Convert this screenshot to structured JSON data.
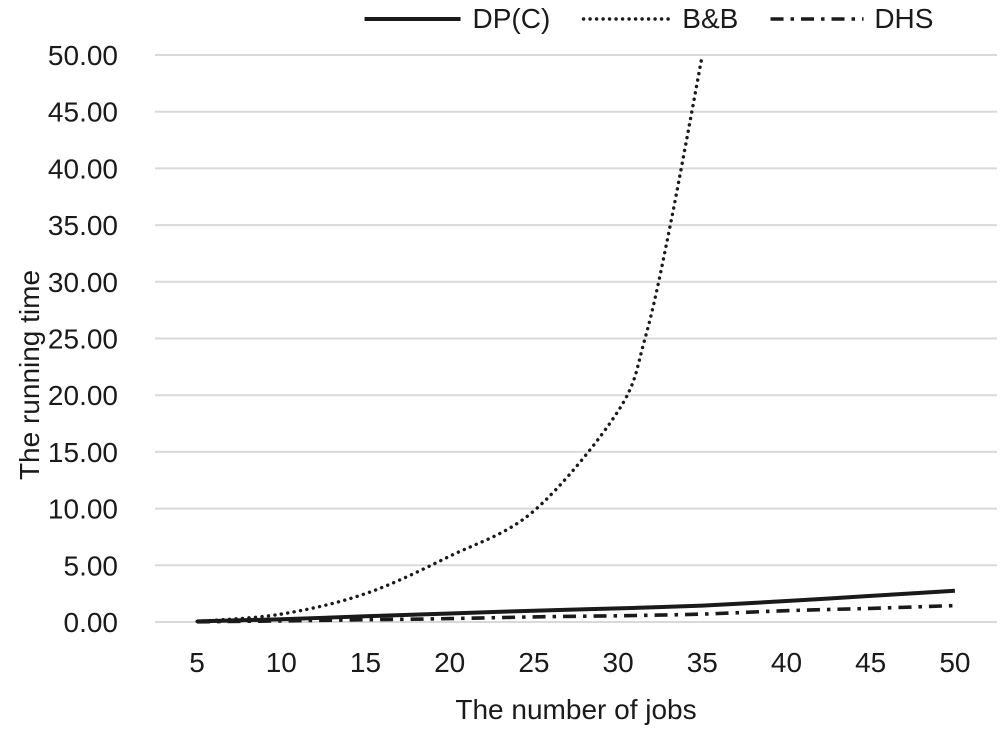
{
  "chart_data": {
    "type": "line",
    "title": "",
    "xlabel": "The number of jobs",
    "ylabel": "The running time",
    "categories": [
      5,
      10,
      15,
      20,
      25,
      30,
      35,
      40,
      45,
      50
    ],
    "x_tick_labels": [
      "5",
      "10",
      "15",
      "20",
      "25",
      "30",
      "35",
      "40",
      "45",
      "50"
    ],
    "y_ticks": [
      0,
      5,
      10,
      15,
      20,
      25,
      30,
      35,
      40,
      45,
      50
    ],
    "y_tick_labels": [
      "0.00",
      "5.00",
      "10.00",
      "15.00",
      "20.00",
      "25.00",
      "30.00",
      "35.00",
      "40.00",
      "45.00",
      "50.00"
    ],
    "ylim": [
      0,
      50
    ],
    "grid": "horizontal gridlines only",
    "legend_position": "top center",
    "series": [
      {
        "key": "dpc",
        "name": "DP(C)",
        "style": "solid",
        "color": "#1a1a1a",
        "values": [
          0.05,
          0.25,
          0.5,
          0.75,
          1.0,
          1.2,
          1.45,
          1.85,
          2.3,
          2.75
        ]
      },
      {
        "key": "bnb",
        "name": "B&B",
        "style": "dotted",
        "color": "#1a1a1a",
        "values": [
          0.05,
          0.7,
          2.5,
          5.8,
          9.8,
          18.6,
          50,
          null,
          null,
          null
        ],
        "note": "curve reaches the y-axis maximum 50.00 near x=35 and is clipped; no values plotted for 40-50",
        "extra_curve_points": [
          [
            31.6,
            25
          ],
          [
            33.1,
            35
          ]
        ]
      },
      {
        "key": "dhs",
        "name": "DHS",
        "style": "dash-dot",
        "color": "#1a1a1a",
        "values": [
          0.02,
          0.1,
          0.2,
          0.3,
          0.45,
          0.55,
          0.7,
          1.0,
          1.2,
          1.45
        ]
      }
    ]
  },
  "colors": {
    "background": "#ffffff",
    "gridline": "#d9d9d9",
    "text": "#1a1a1a",
    "series_line": "#1a1a1a"
  }
}
